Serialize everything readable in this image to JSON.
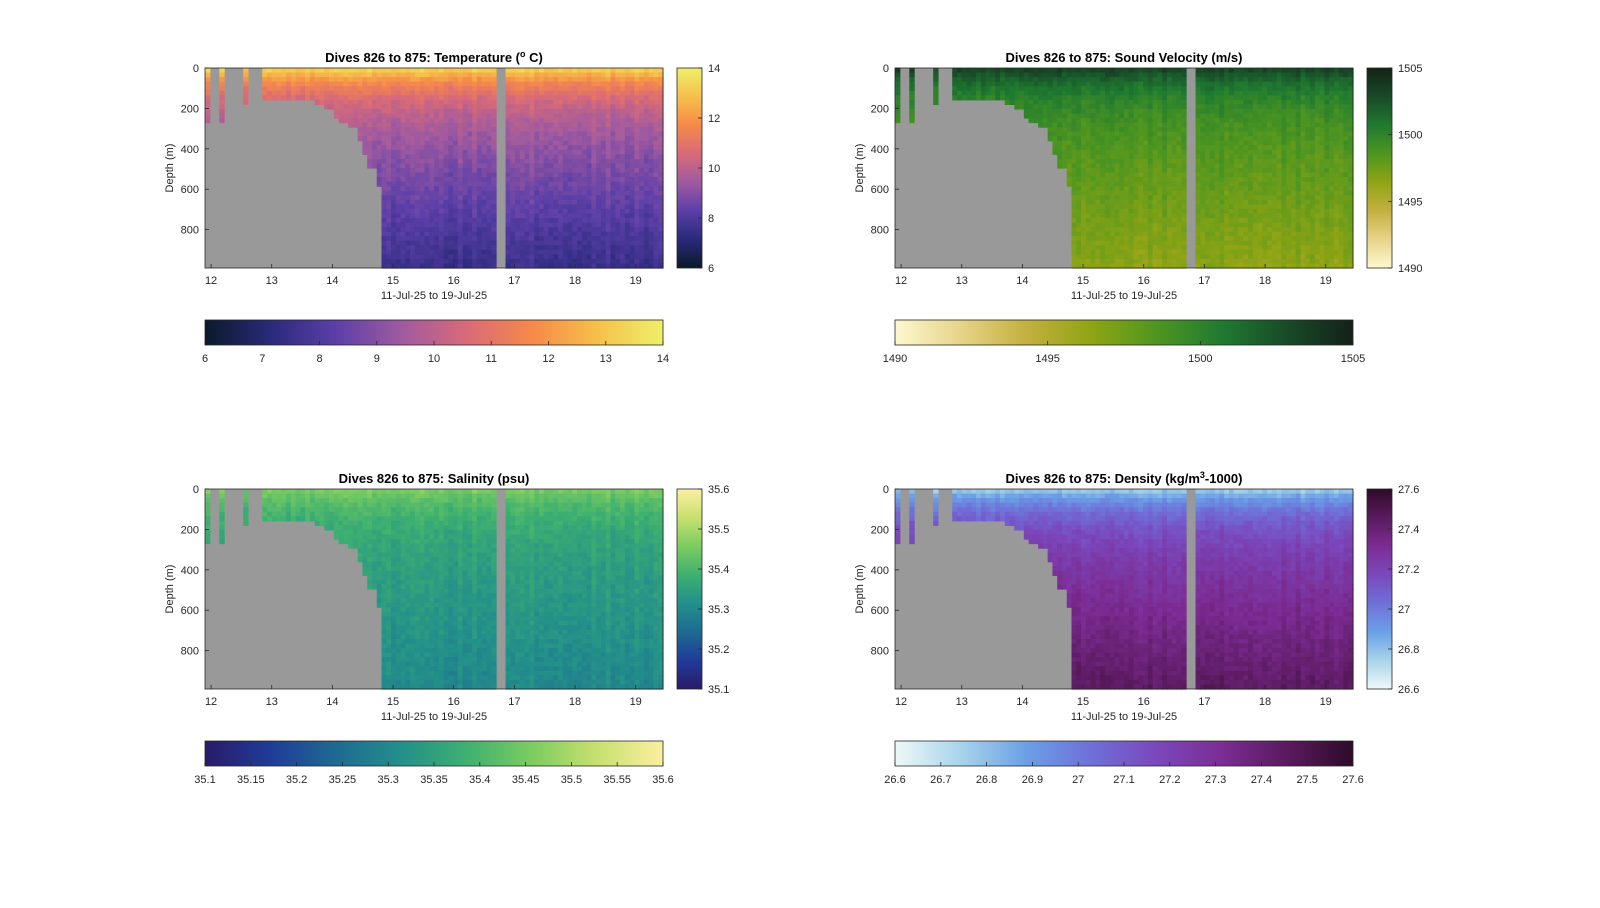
{
  "chart_data": [
    {
      "type": "heatmap",
      "title": "Dives 826 to 875: Temperature (",
      "title_sup": "o",
      "title_suffix": " C)",
      "xlabel": "11-Jul-25 to 19-Jul-25",
      "ylabel": "Depth (m)",
      "xlim": [
        11.9,
        19.45
      ],
      "ylim": [
        0,
        990
      ],
      "x_ticks": [
        "12",
        "13",
        "14",
        "15",
        "16",
        "17",
        "18",
        "19"
      ],
      "y_ticks": [
        "0",
        "200",
        "400",
        "600",
        "800"
      ],
      "colormap": [
        "#0a1a2a",
        "#2a2a7a",
        "#5b3fa8",
        "#a05aa0",
        "#d86a78",
        "#f6894a",
        "#f6c04a",
        "#eef06a"
      ],
      "colorbar": {
        "min": 6,
        "max": 14,
        "vertical_ticks": [
          "6",
          "8",
          "10",
          "12",
          "14"
        ],
        "horizontal_ticks": [
          "6",
          "7",
          "8",
          "9",
          "10",
          "11",
          "12",
          "13",
          "14"
        ]
      },
      "surface_value": 13.5,
      "deep_value": 7.5,
      "no_data_color": "#999999"
    },
    {
      "type": "heatmap",
      "title": "Dives 826 to 875: Sound Velocity (m/s)",
      "title_sup": "",
      "title_suffix": "",
      "xlabel": "11-Jul-25 to 19-Jul-25",
      "ylabel": "Depth (m)",
      "xlim": [
        11.9,
        19.45
      ],
      "ylim": [
        0,
        990
      ],
      "x_ticks": [
        "12",
        "13",
        "14",
        "15",
        "16",
        "17",
        "18",
        "19"
      ],
      "y_ticks": [
        "0",
        "200",
        "400",
        "600",
        "800"
      ],
      "colormap": [
        "#fdf8d0",
        "#e6d488",
        "#c4b040",
        "#8fa414",
        "#4e9620",
        "#1f7a30",
        "#184a28",
        "#142218"
      ],
      "colorbar": {
        "min": 1490,
        "max": 1505,
        "vertical_ticks": [
          "1490",
          "1495",
          "1500",
          "1505"
        ],
        "horizontal_ticks": [
          "1490",
          "1495",
          "1500",
          "1505"
        ]
      },
      "surface_value": 1503.5,
      "deep_value": 1496.5,
      "no_data_color": "#999999"
    },
    {
      "type": "heatmap",
      "title": "Dives 826 to 875: Salinity (psu)",
      "title_sup": "",
      "title_suffix": "",
      "xlabel": "11-Jul-25 to 19-Jul-25",
      "ylabel": "Depth (m)",
      "xlim": [
        11.9,
        19.45
      ],
      "ylim": [
        0,
        990
      ],
      "x_ticks": [
        "12",
        "13",
        "14",
        "15",
        "16",
        "17",
        "18",
        "19"
      ],
      "y_ticks": [
        "0",
        "200",
        "400",
        "600",
        "800"
      ],
      "colormap": [
        "#2a1a6a",
        "#1f3c98",
        "#1e6a92",
        "#23908a",
        "#3eb070",
        "#7ccc60",
        "#c8e070",
        "#fbf0a0"
      ],
      "colorbar": {
        "min": 35.1,
        "max": 35.6,
        "vertical_ticks": [
          "35.1",
          "35.2",
          "35.3",
          "35.4",
          "35.5",
          "35.6"
        ],
        "horizontal_ticks": [
          "35.1",
          "35.15",
          "35.2",
          "35.25",
          "35.3",
          "35.35",
          "35.4",
          "35.45",
          "35.5",
          "35.55",
          "35.6"
        ]
      },
      "surface_value": 35.46,
      "deep_value": 35.3,
      "no_data_color": "#999999"
    },
    {
      "type": "heatmap",
      "title": "Dives 826 to 875: Density (kg/m",
      "title_sup": "3",
      "title_suffix": "-1000)",
      "xlabel": "11-Jul-25 to 19-Jul-25",
      "ylabel": "Depth (m)",
      "xlim": [
        11.9,
        19.45
      ],
      "ylim": [
        0,
        990
      ],
      "x_ticks": [
        "12",
        "13",
        "14",
        "15",
        "16",
        "17",
        "18",
        "19"
      ],
      "y_ticks": [
        "0",
        "200",
        "400",
        "600",
        "800"
      ],
      "colormap": [
        "#eef8f8",
        "#a8d4ea",
        "#6aa0e6",
        "#6f70d8",
        "#7a48bc",
        "#7c2c94",
        "#5a1a5e",
        "#2e0a28"
      ],
      "colorbar": {
        "min": 26.6,
        "max": 27.6,
        "vertical_ticks": [
          "26.6",
          "26.8",
          "27",
          "27.2",
          "27.4",
          "27.6"
        ],
        "horizontal_ticks": [
          "26.6",
          "26.7",
          "26.8",
          "26.9",
          "27",
          "27.1",
          "27.2",
          "27.3",
          "27.4",
          "27.5",
          "27.6"
        ]
      },
      "surface_value": 26.75,
      "deep_value": 27.45,
      "no_data_color": "#999999"
    }
  ]
}
